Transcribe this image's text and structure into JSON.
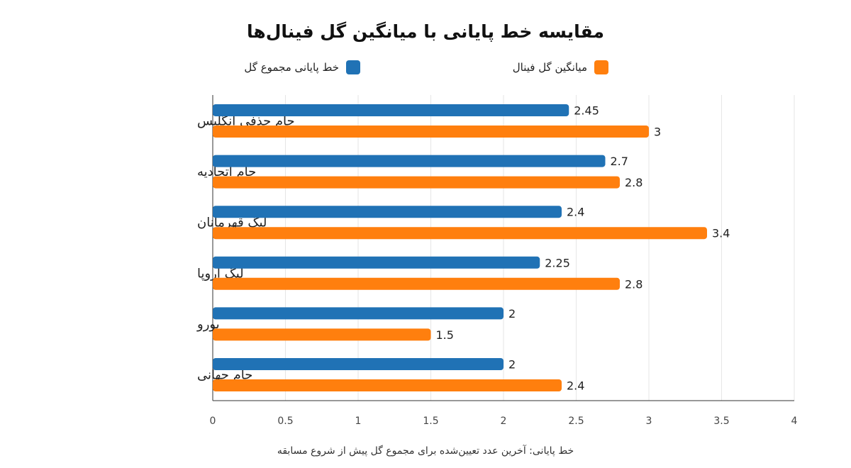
{
  "chart_data": {
    "type": "bar",
    "orientation": "horizontal",
    "title": "مقایسه خط پایانی با میانگین گل فینال‌ها",
    "categories": [
      "جام حذفی انگلیس",
      "جام اتحادیه",
      "لیگ قهرمانان",
      "لیگ اروپا",
      "یورو",
      "جام جهانی"
    ],
    "series": [
      {
        "name": "خط پایانی مجموع گل",
        "color": "#2072b5",
        "values": [
          2.45,
          2.7,
          2.4,
          2.25,
          2,
          2
        ],
        "labels": [
          "2.45",
          "2.7",
          "2.4",
          "2.25",
          "2",
          "2"
        ]
      },
      {
        "name": "میانگین گل فینال",
        "color": "#ff7f0e",
        "values": [
          3,
          2.8,
          3.4,
          2.8,
          1.5,
          2.4
        ],
        "labels": [
          "3",
          "2.8",
          "3.4",
          "2.8",
          "1.5",
          "2.4"
        ]
      }
    ],
    "xlim": [
      0,
      4
    ],
    "xticks": [
      0,
      0.5,
      1,
      1.5,
      2,
      2.5,
      3,
      3.5,
      4
    ],
    "xtick_labels": [
      "0",
      "0.5",
      "1",
      "1.5",
      "2",
      "2.5",
      "3",
      "3.5",
      "4"
    ],
    "grid": true,
    "legend_position": "top",
    "caption": "خط پایانی: آخرین عدد تعیین‌شده برای مجموع گل پیش از شروع مسابقه"
  }
}
